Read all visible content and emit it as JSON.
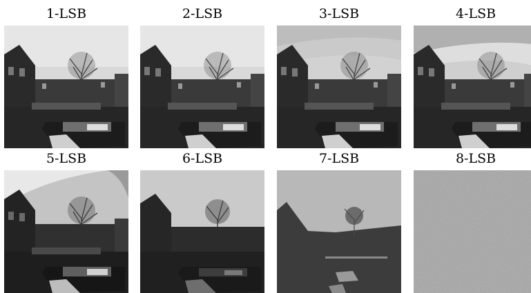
{
  "panels": [
    {
      "label": "1-LSB",
      "variant": "photo"
    },
    {
      "label": "2-LSB",
      "variant": "photo"
    },
    {
      "label": "3-LSB",
      "variant": "photo-banded"
    },
    {
      "label": "4-LSB",
      "variant": "photo-banded"
    },
    {
      "label": "5-LSB",
      "variant": "photo-banded-strong"
    },
    {
      "label": "6-LSB",
      "variant": "posterized"
    },
    {
      "label": "7-LSB",
      "variant": "binary"
    },
    {
      "label": "8-LSB",
      "variant": "noise"
    }
  ],
  "colors": {
    "background": "#ffffff",
    "label": "#000000"
  }
}
